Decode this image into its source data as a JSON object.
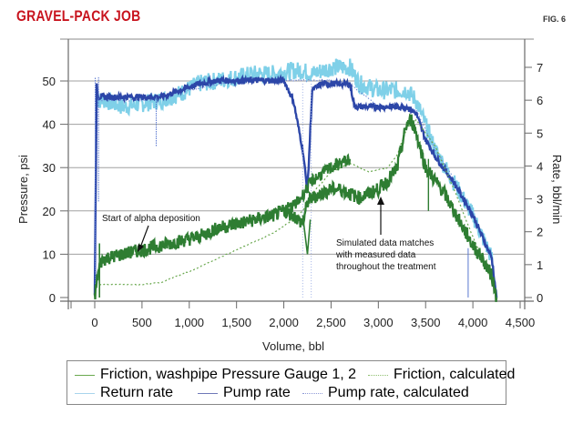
{
  "header": {
    "title": "GRAVEL-PACK JOB",
    "fig_label": "FIG. 6"
  },
  "colors": {
    "title_red": "#c8141e",
    "friction_green": "#2e7d32",
    "friction_calc_green": "#6aa84f",
    "return_rate_light_blue": "#7fd0e8",
    "pump_rate_blue": "#2c46a8",
    "pump_rate_calc_blue": "#6f86d6",
    "gridline": "#9a9a9a"
  },
  "axes": {
    "xlabel": "Volume, bbl",
    "ylabel_left": "Pressure, psi",
    "ylabel_right": "Rate, bbl/min",
    "x_ticks": [
      "0",
      "500",
      "1,000",
      "1,500",
      "2,000",
      "2,500",
      "3,000",
      "3,500",
      "4,000",
      "4,500"
    ],
    "y_left_ticks": [
      "0",
      "10",
      "20",
      "30",
      "40",
      "50"
    ],
    "y_right_ticks": [
      "0",
      "1",
      "2",
      "3",
      "4",
      "5",
      "6",
      "7"
    ]
  },
  "annotations": {
    "alpha": "Start of alpha deposition",
    "sim_line1": "Simulated data matches",
    "sim_line2": "with measured data",
    "sim_line3": "throughout the treatment"
  },
  "legend": {
    "items": [
      {
        "label": "Friction, washpipe Pressure Gauge 1, 2",
        "color": "#2e7d32",
        "style": "solid"
      },
      {
        "label": "Friction, calculated",
        "color": "#6aa84f",
        "style": "dotted"
      },
      {
        "label": "Return rate",
        "color": "#7fd0e8",
        "style": "solid"
      },
      {
        "label": "Pump rate",
        "color": "#2c46a8",
        "style": "solid"
      },
      {
        "label": "Pump rate, calculated",
        "color": "#6f86d6",
        "style": "dotted"
      }
    ]
  },
  "chart_data": {
    "type": "line",
    "title": "GRAVEL-PACK JOB",
    "xlabel": "Volume, bbl",
    "ylabel": "Pressure, psi",
    "y2label": "Rate, bbl/min",
    "xlim": [
      -300,
      4500
    ],
    "ylim": [
      0,
      55
    ],
    "y2lim": [
      0,
      7.5
    ],
    "grid": {
      "horizontal": true,
      "vertical": false
    },
    "legend_position": "bottom",
    "series": [
      {
        "name": "Friction, washpipe Pressure Gauge 1, 2",
        "axis": "left",
        "x": [
          0,
          30,
          60,
          100,
          300,
          500,
          700,
          900,
          1100,
          1300,
          1500,
          1700,
          1900,
          2000,
          2100,
          2150,
          2200,
          2250,
          2300,
          2400,
          2500,
          2600,
          2700,
          2800,
          2900,
          3000,
          3100,
          3200,
          3300,
          3350,
          3400,
          3500,
          3600,
          3700,
          3800,
          3900,
          4000,
          4100,
          4200,
          4250
        ],
        "values": [
          0,
          5,
          8,
          9,
          10,
          11,
          12,
          13,
          14,
          16,
          17,
          18,
          19,
          20,
          19,
          18,
          17,
          22,
          23,
          24,
          25,
          25,
          24,
          23,
          24,
          25,
          27,
          30,
          40,
          41,
          38,
          30,
          27,
          24,
          20,
          16,
          12,
          9,
          5,
          0
        ]
      },
      {
        "name": "Friction, calculated",
        "axis": "left",
        "x": [
          50,
          300,
          500,
          700,
          1000,
          1300,
          1600,
          1900,
          2100,
          2200,
          2300,
          2500,
          2700,
          2900,
          3100,
          3200,
          3300,
          3400,
          3600,
          3800,
          4000,
          4200
        ],
        "values": [
          3,
          3,
          3,
          3.5,
          6,
          9,
          12,
          15,
          18,
          20,
          24,
          29,
          31,
          29,
          30,
          33,
          39,
          41,
          35,
          25,
          14,
          4
        ]
      },
      {
        "name": "Return rate",
        "axis": "right",
        "x": [
          20,
          100,
          300,
          500,
          700,
          900,
          1100,
          1300,
          1500,
          1700,
          1900,
          2100,
          2200,
          2300,
          2400,
          2500,
          2600,
          2700,
          2800,
          3000,
          3200,
          3300,
          3400,
          3600,
          3800,
          4000,
          4200,
          4250
        ],
        "values": [
          6.0,
          6.0,
          5.8,
          5.9,
          6.0,
          6.2,
          6.5,
          6.6,
          6.7,
          6.8,
          6.8,
          6.9,
          6.9,
          6.8,
          6.9,
          7.0,
          7.0,
          7.0,
          6.5,
          6.3,
          6.3,
          6.3,
          6.0,
          4.5,
          3.5,
          2.5,
          1.2,
          0
        ]
      },
      {
        "name": "Pump rate",
        "axis": "right",
        "x": [
          0,
          20,
          40,
          100,
          300,
          500,
          700,
          900,
          1100,
          1300,
          1500,
          1700,
          1900,
          2000,
          2100,
          2200,
          2250,
          2300,
          2400,
          2500,
          2600,
          2700,
          2750,
          2900,
          3100,
          3300,
          3400,
          3500,
          3600,
          3800,
          4000,
          4200,
          4250
        ],
        "values": [
          0,
          6.5,
          6.1,
          6.1,
          6.1,
          6.1,
          6.1,
          6.3,
          6.5,
          6.6,
          6.6,
          6.6,
          6.6,
          6.6,
          6.0,
          4.5,
          3.2,
          6.3,
          6.5,
          6.5,
          6.5,
          6.5,
          5.8,
          5.8,
          5.8,
          5.8,
          5.6,
          4.8,
          4.3,
          3.5,
          2.5,
          1.2,
          0
        ]
      },
      {
        "name": "Pump rate, calculated",
        "axis": "right",
        "x": [
          0,
          30,
          100,
          500,
          1000,
          1500,
          2000,
          2500,
          2700,
          3000,
          3300,
          3400,
          3600,
          3800,
          4000,
          4200,
          4250
        ],
        "values": [
          0,
          6.0,
          6.0,
          6.0,
          6.3,
          6.6,
          6.6,
          6.6,
          6.5,
          5.8,
          5.8,
          5.7,
          4.5,
          3.6,
          2.6,
          1.2,
          0
        ]
      }
    ],
    "annotations": [
      {
        "text": "Start of alpha deposition",
        "x": 500,
        "y": 11
      },
      {
        "text": "Simulated data matches with measured data throughout the treatment",
        "x": 3100,
        "y": 23
      }
    ]
  }
}
